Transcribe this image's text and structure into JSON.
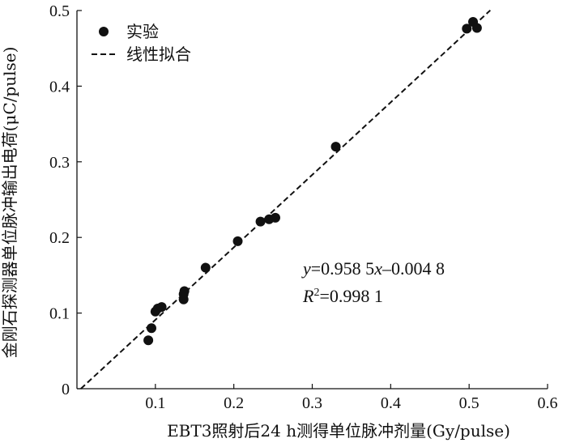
{
  "chart_data": {
    "type": "scatter",
    "title": "",
    "xlabel": "EBT3照射后24 h测得单位脉冲剂量(Gy/pulse)",
    "ylabel": "金刚石探测器单位脉冲输出电荷(μC/pulse)",
    "xlim": [
      0,
      0.6
    ],
    "ylim": [
      0,
      0.5
    ],
    "x_ticks": [
      "0.1",
      "0.2",
      "0.3",
      "0.4",
      "0.5",
      "0.6"
    ],
    "y_ticks": [
      "0",
      "0.1",
      "0.2",
      "0.3",
      "0.4",
      "0.5"
    ],
    "grid": false,
    "legend_position": "top-left",
    "colors": {
      "points": "#111111",
      "fit_line": "#111111",
      "axes": "#111111"
    },
    "series": [
      {
        "name": "实验",
        "type": "scatter",
        "points": [
          {
            "x": 0.091,
            "y": 0.064
          },
          {
            "x": 0.095,
            "y": 0.08
          },
          {
            "x": 0.1,
            "y": 0.102
          },
          {
            "x": 0.103,
            "y": 0.106
          },
          {
            "x": 0.108,
            "y": 0.108
          },
          {
            "x": 0.136,
            "y": 0.118
          },
          {
            "x": 0.136,
            "y": 0.125
          },
          {
            "x": 0.137,
            "y": 0.129
          },
          {
            "x": 0.164,
            "y": 0.16
          },
          {
            "x": 0.205,
            "y": 0.195
          },
          {
            "x": 0.234,
            "y": 0.221
          },
          {
            "x": 0.245,
            "y": 0.224
          },
          {
            "x": 0.253,
            "y": 0.226
          },
          {
            "x": 0.33,
            "y": 0.32
          },
          {
            "x": 0.497,
            "y": 0.476
          },
          {
            "x": 0.505,
            "y": 0.485
          },
          {
            "x": 0.51,
            "y": 0.477
          }
        ]
      },
      {
        "name": "线性拟合",
        "type": "line",
        "style": "dashed",
        "slope": 0.9585,
        "intercept": -0.0048,
        "x_range": [
          0.005,
          0.527
        ]
      }
    ],
    "legend": {
      "scatter_label": "实验",
      "fit_label": "线性拟合"
    },
    "annotation": {
      "y_var": "y",
      "equation_rest_1": "=0.958 5",
      "x_var": "x",
      "equation_rest_2": "–0.004 8",
      "r_var": "R",
      "r_sup": "2",
      "r_rest": "=0.998 1"
    }
  }
}
